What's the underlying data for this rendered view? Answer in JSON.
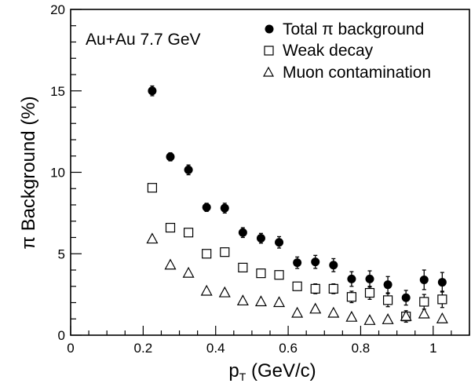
{
  "chart_data": {
    "type": "scatter",
    "title": "",
    "annotation": "Au+Au 7.7 GeV",
    "xlabel_main": "p",
    "xlabel_sub": "T",
    "xlabel_unit": " (GeV/c)",
    "ylabel": "π Background (%)",
    "xlim": [
      0,
      1.1
    ],
    "ylim": [
      0,
      20
    ],
    "x_ticks": [
      0,
      0.2,
      0.4,
      0.6,
      0.8,
      1
    ],
    "x_tick_labels": [
      "0",
      "0.2",
      "0.4",
      "0.6",
      "0.8",
      "1"
    ],
    "y_ticks": [
      0,
      5,
      10,
      15,
      20
    ],
    "y_tick_labels": [
      "0",
      "5",
      "10",
      "15",
      "20"
    ],
    "grid": false,
    "legend_position": "top-right",
    "series": [
      {
        "name": "Total π background",
        "marker": "filled-circle",
        "x": [
          0.225,
          0.275,
          0.325,
          0.375,
          0.425,
          0.475,
          0.525,
          0.575,
          0.625,
          0.675,
          0.725,
          0.775,
          0.825,
          0.875,
          0.925,
          0.975,
          1.025
        ],
        "y": [
          15.0,
          10.95,
          10.15,
          7.85,
          7.8,
          6.3,
          5.95,
          5.7,
          4.45,
          4.5,
          4.3,
          3.45,
          3.45,
          3.1,
          2.3,
          3.4,
          3.25
        ],
        "err": [
          0.3,
          0.25,
          0.3,
          0.25,
          0.3,
          0.3,
          0.3,
          0.35,
          0.35,
          0.4,
          0.4,
          0.45,
          0.5,
          0.5,
          0.45,
          0.6,
          0.6
        ]
      },
      {
        "name": "Weak decay",
        "marker": "open-square",
        "x": [
          0.225,
          0.275,
          0.325,
          0.375,
          0.425,
          0.475,
          0.525,
          0.575,
          0.625,
          0.675,
          0.725,
          0.775,
          0.825,
          0.875,
          0.925,
          0.975,
          1.025
        ],
        "y": [
          9.05,
          6.6,
          6.3,
          5.0,
          5.1,
          4.15,
          3.8,
          3.7,
          3.0,
          2.85,
          2.85,
          2.35,
          2.6,
          2.15,
          1.15,
          2.05,
          2.2
        ],
        "err": [
          0.2,
          0.2,
          0.2,
          0.2,
          0.25,
          0.2,
          0.25,
          0.25,
          0.25,
          0.3,
          0.3,
          0.35,
          0.4,
          0.4,
          0.35,
          0.45,
          0.5
        ]
      },
      {
        "name": "Muon contamination",
        "marker": "open-triangle",
        "x": [
          0.225,
          0.275,
          0.325,
          0.375,
          0.425,
          0.475,
          0.525,
          0.575,
          0.625,
          0.675,
          0.725,
          0.775,
          0.825,
          0.875,
          0.925,
          0.975,
          1.025
        ],
        "y": [
          5.9,
          4.3,
          3.8,
          2.7,
          2.6,
          2.1,
          2.05,
          2.0,
          1.35,
          1.6,
          1.35,
          1.1,
          0.9,
          0.95,
          1.15,
          1.3,
          1.0
        ],
        "err": [
          0,
          0,
          0,
          0,
          0,
          0,
          0,
          0,
          0,
          0,
          0,
          0,
          0,
          0,
          0,
          0,
          0
        ]
      }
    ]
  }
}
